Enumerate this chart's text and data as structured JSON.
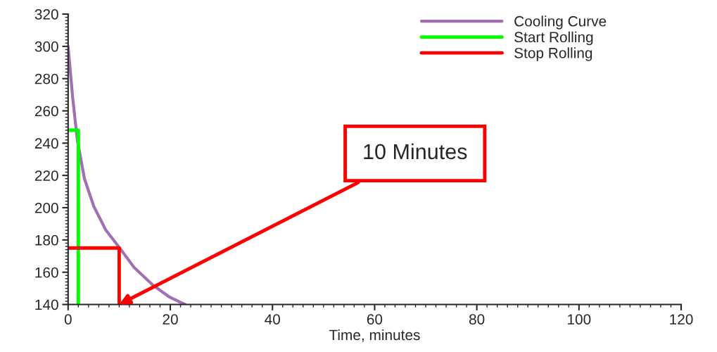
{
  "chart_data": {
    "type": "line",
    "xlabel": "Time, minutes",
    "series": [
      {
        "name": "Cooling Curve",
        "color": "#a070b0",
        "x": [
          0,
          0.9,
          1.8,
          3.2,
          5,
          7.4,
          10.1,
          12.9,
          16.6,
          19.9,
          22.9
        ],
        "values": [
          300,
          268,
          242,
          218,
          201,
          186,
          175,
          163,
          152,
          144.5,
          140
        ]
      },
      {
        "name": "Start Rolling",
        "color": "#00ff00",
        "x": [
          0,
          2,
          2
        ],
        "values": [
          248,
          248,
          140
        ]
      },
      {
        "name": "Stop Rolling",
        "color": "#ff0000",
        "x": [
          0,
          10,
          10
        ],
        "values": [
          175,
          175,
          140
        ]
      }
    ],
    "annotations": [
      {
        "text": "10 Minutes",
        "x": 10,
        "y": 140
      }
    ],
    "xlim": [
      0,
      120
    ],
    "xticks": [
      0,
      20,
      40,
      60,
      80,
      100,
      120
    ],
    "ylim": [
      140,
      320
    ],
    "yticks": [
      140,
      160,
      180,
      200,
      220,
      240,
      260,
      280,
      300,
      320
    ],
    "grid": false,
    "legend": "top right",
    "marker": "none",
    "line_style": "solid"
  }
}
